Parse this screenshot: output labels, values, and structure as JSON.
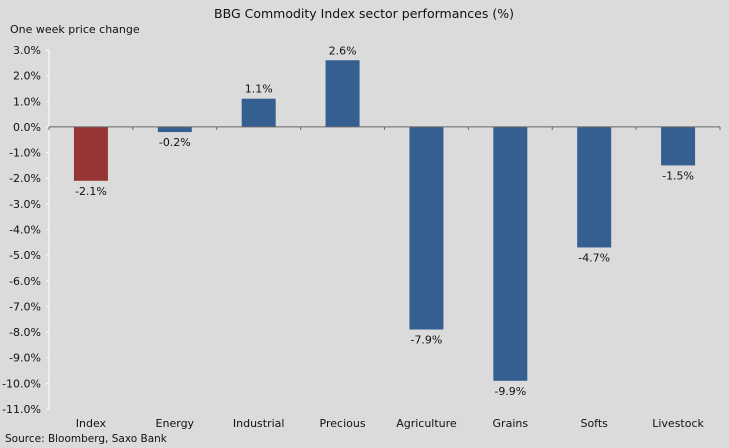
{
  "chart_data": {
    "type": "bar",
    "title": "BBG  Commodity  Index sector performances (%)",
    "ylabel": "One week price change",
    "xlabel": "",
    "source": "Source: Bloomberg, Saxo Bank",
    "categories": [
      "Index",
      "Energy",
      "Industrial",
      "Precious",
      "Agriculture",
      "Grains",
      "Softs",
      "Livestock"
    ],
    "values": [
      -2.1,
      -0.2,
      1.1,
      2.6,
      -7.9,
      -9.9,
      -4.7,
      -1.5
    ],
    "data_labels": [
      "-2.1%",
      "-0.2%",
      "1.1%",
      "2.6%",
      "-7.9%",
      "-9.9%",
      "-4.7%",
      "-1.5%"
    ],
    "ylim": [
      -11,
      3
    ],
    "yticks": [
      3,
      2,
      1,
      0,
      -1,
      -2,
      -3,
      -4,
      -5,
      -6,
      -7,
      -8,
      -9,
      -10,
      -11
    ],
    "ytick_labels": [
      "3.0%",
      "2.0%",
      "1.0%",
      "0.0%",
      "-1.0%",
      "-2.0%",
      "-3.0%",
      "-4.0%",
      "-5.0%",
      "-6.0%",
      "-7.0%",
      "-8.0%",
      "-9.0%",
      "-10.0%",
      "-11.0%"
    ],
    "grid": false,
    "legend": "none",
    "colors": {
      "default": "#365f91",
      "highlight": "#963634",
      "highlight_category": "Index",
      "background": "#dbdbdb"
    }
  }
}
